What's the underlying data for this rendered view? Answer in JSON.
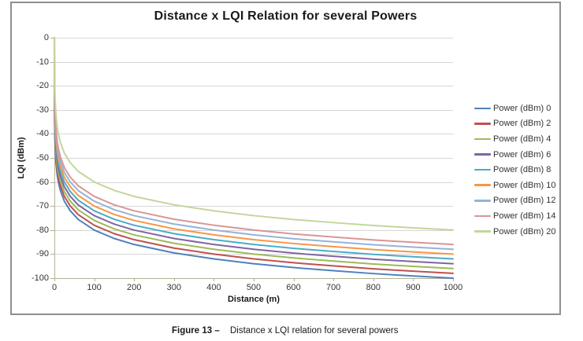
{
  "page": {
    "background": "#ffffff"
  },
  "figure": {
    "caption_label": "Figure 13 –",
    "caption_text": "Distance x LQI relation for several powers"
  },
  "chart_data": {
    "type": "line",
    "title": "Distance x LQI Relation for several Powers",
    "xlabel": "Distance (m)",
    "ylabel": "LQI (dBm)",
    "xlim": [
      0,
      1000
    ],
    "ylim": [
      -100,
      0
    ],
    "xticks": [
      0,
      100,
      200,
      300,
      400,
      500,
      600,
      700,
      800,
      900,
      1000
    ],
    "yticks": [
      0,
      -10,
      -20,
      -30,
      -40,
      -50,
      -60,
      -70,
      -80,
      -90,
      -100
    ],
    "grid": "horizontal",
    "legend_position": "right",
    "x": [
      0.01,
      0.1,
      0.5,
      1,
      2,
      4,
      7,
      10,
      15,
      25,
      40,
      60,
      100,
      150,
      200,
      300,
      400,
      500,
      600,
      700,
      800,
      900,
      1000
    ],
    "series": [
      {
        "name": "Power (dBm) 0",
        "power_dbm": 0,
        "color": "#4F81BD",
        "values": [
          0,
          -20,
          -34,
          -40,
          -46,
          -52,
          -56.9,
          -60,
          -63.5,
          -68,
          -72,
          -75.6,
          -80,
          -83.5,
          -86,
          -89.5,
          -92,
          -94,
          -95.6,
          -96.9,
          -98.1,
          -99.1,
          -100
        ]
      },
      {
        "name": "Power (dBm) 2",
        "power_dbm": 2,
        "color": "#C0504D",
        "values": [
          0,
          -18,
          -32,
          -38,
          -44,
          -50,
          -54.9,
          -58,
          -61.5,
          -66,
          -70,
          -73.6,
          -78,
          -81.5,
          -84,
          -87.5,
          -90,
          -92,
          -93.6,
          -94.9,
          -96.1,
          -97.1,
          -98
        ]
      },
      {
        "name": "Power (dBm) 4",
        "power_dbm": 4,
        "color": "#9BBB59",
        "values": [
          0,
          -16,
          -30,
          -36,
          -42,
          -48,
          -52.9,
          -56,
          -59.5,
          -64,
          -68,
          -71.6,
          -76,
          -79.5,
          -82,
          -85.5,
          -88,
          -90,
          -91.6,
          -92.9,
          -94.1,
          -95.1,
          -96
        ]
      },
      {
        "name": "Power (dBm) 6",
        "power_dbm": 6,
        "color": "#8064A2",
        "values": [
          0,
          -14,
          -28,
          -34,
          -40,
          -46,
          -50.9,
          -54,
          -57.5,
          -62,
          -66,
          -69.6,
          -74,
          -77.5,
          -80,
          -83.5,
          -86,
          -88,
          -89.6,
          -90.9,
          -92.1,
          -93.1,
          -94
        ]
      },
      {
        "name": "Power (dBm) 8",
        "power_dbm": 8,
        "color": "#4BACC6",
        "values": [
          0,
          -12,
          -26,
          -32,
          -38,
          -44,
          -48.9,
          -52,
          -55.5,
          -60,
          -64,
          -67.6,
          -72,
          -75.5,
          -78,
          -81.5,
          -84,
          -86,
          -87.6,
          -88.9,
          -90.1,
          -91.1,
          -92
        ]
      },
      {
        "name": "Power (dBm) 10",
        "power_dbm": 10,
        "color": "#F79646",
        "values": [
          0,
          -10,
          -24,
          -30,
          -36,
          -42,
          -46.9,
          -50,
          -53.5,
          -58,
          -62,
          -65.6,
          -70,
          -73.5,
          -76,
          -79.5,
          -82,
          -84,
          -85.6,
          -86.9,
          -88.1,
          -89.1,
          -90
        ]
      },
      {
        "name": "Power (dBm) 12",
        "power_dbm": 12,
        "color": "#95B3D7",
        "values": [
          0,
          -8,
          -22,
          -28,
          -34,
          -40,
          -44.9,
          -48,
          -51.5,
          -56,
          -60,
          -63.6,
          -68,
          -71.5,
          -74,
          -77.5,
          -80,
          -82,
          -83.6,
          -84.9,
          -86.1,
          -87.1,
          -88
        ]
      },
      {
        "name": "Power (dBm) 14",
        "power_dbm": 14,
        "color": "#D99694",
        "values": [
          0,
          -6,
          -20,
          -26,
          -32,
          -38,
          -42.9,
          -46,
          -49.5,
          -54,
          -58,
          -61.6,
          -66,
          -69.5,
          -72,
          -75.5,
          -78,
          -80,
          -81.6,
          -82.9,
          -84.1,
          -85.1,
          -86
        ]
      },
      {
        "name": "Power (dBm) 20",
        "power_dbm": 20,
        "color": "#C3D69B",
        "values": [
          0,
          0,
          -14,
          -20,
          -26,
          -32,
          -36.9,
          -40,
          -43.5,
          -48,
          -52,
          -55.6,
          -60,
          -63.5,
          -66,
          -69.5,
          -72,
          -74,
          -75.6,
          -76.9,
          -78.1,
          -79.1,
          -80
        ]
      }
    ],
    "style": {
      "axis_color": "#b3b394",
      "grid_color": "#d6d6d6",
      "frame_border_color": "#8f8f8f",
      "title_color": "#1a1a1a",
      "tick_label_color": "#333333",
      "line_width": 2
    }
  }
}
